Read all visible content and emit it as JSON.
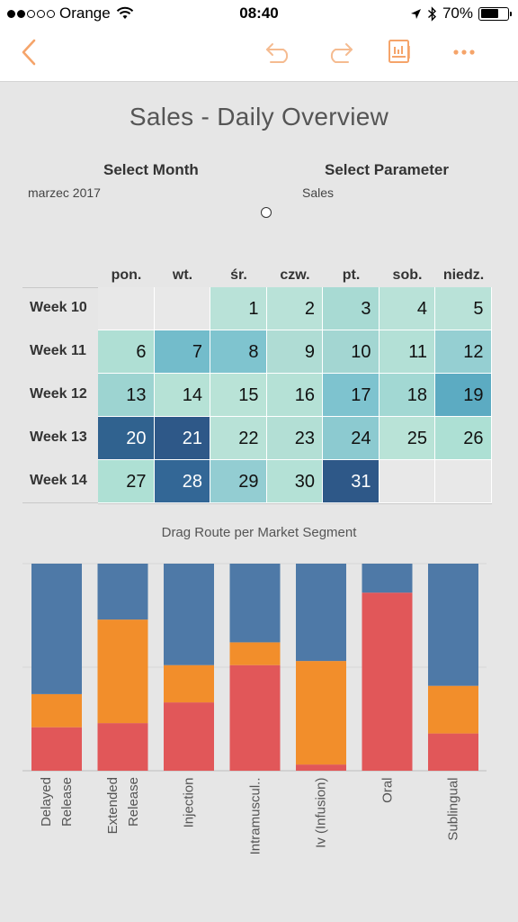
{
  "status_bar": {
    "carrier": "Orange",
    "time": "08:40",
    "battery": "70%",
    "signal_bars_filled": 2,
    "signal_bars_total": 5,
    "battery_level": 0.7
  },
  "toolbar": {
    "accent_color": "#f5a46a",
    "icons": [
      "back-chevron-icon",
      "undo-icon",
      "redo-icon",
      "dashboard-icon",
      "more-icon"
    ]
  },
  "dashboard": {
    "title": "Sales - Daily Overview",
    "select_month_label": "Select Month",
    "select_month_value": "marzec 2017",
    "select_parameter_label": "Select Parameter",
    "select_parameter_value": "Sales"
  },
  "calendar": {
    "days": [
      "pon.",
      "wt.",
      "śr.",
      "czw.",
      "pt.",
      "sob.",
      "niedz."
    ],
    "weeks": [
      "Week 10",
      "Week 11",
      "Week 12",
      "Week 13",
      "Week 14"
    ],
    "rows": [
      [
        null,
        null,
        "1",
        "2",
        "3",
        "4",
        "5"
      ],
      [
        "6",
        "7",
        "8",
        "9",
        "10",
        "11",
        "12"
      ],
      [
        "13",
        "14",
        "15",
        "16",
        "17",
        "18",
        "19"
      ],
      [
        "20",
        "21",
        "22",
        "23",
        "24",
        "25",
        "26"
      ],
      [
        "27",
        "28",
        "29",
        "30",
        "31",
        null,
        null
      ]
    ],
    "colors": [
      [
        null,
        null,
        "#b9e2d8",
        "#b9e2d8",
        "#a8dad3",
        "#b9e2d8",
        "#b9e2d8"
      ],
      [
        "#afdfd4",
        "#73bccb",
        "#7fc4cf",
        "#afdcd4",
        "#a3d6d2",
        "#b3e0d6",
        "#95cfd2"
      ],
      [
        "#9dd4d1",
        "#b6e2d6",
        "#b9e3d7",
        "#b5e1d6",
        "#7ec3cf",
        "#a2d8d3",
        "#5cabc2"
      ],
      [
        "#30628f",
        "#2e5888",
        "#b8e2d7",
        "#b3dfd5",
        "#8ccad0",
        "#b9e3d7",
        "#ade0d4"
      ],
      [
        "#aee0d4",
        "#336796",
        "#93cdd2",
        "#b4e1d6",
        "#2e5888",
        null,
        null
      ]
    ]
  },
  "chart_data": {
    "type": "bar",
    "stacked": true,
    "normalized": true,
    "title": "Drag Route per Market Segment",
    "categories": [
      "Delayed\nRelease",
      "Extended\nRelease",
      "Injection",
      "Intramuscul..",
      "Iv (Infusion)",
      "Oral",
      "Sublingual"
    ],
    "series": [
      {
        "color": "#e15759",
        "values": [
          0.21,
          0.23,
          0.33,
          0.51,
          0.03,
          0.86,
          0.18
        ]
      },
      {
        "color": "#f28e2b",
        "values": [
          0.16,
          0.5,
          0.18,
          0.11,
          0.5,
          0.0,
          0.23
        ]
      },
      {
        "color": "#4e79a7",
        "values": [
          0.63,
          0.27,
          0.49,
          0.38,
          0.47,
          0.14,
          0.59
        ]
      }
    ],
    "ylim": [
      0,
      1
    ],
    "grid": true,
    "legend": "none"
  }
}
